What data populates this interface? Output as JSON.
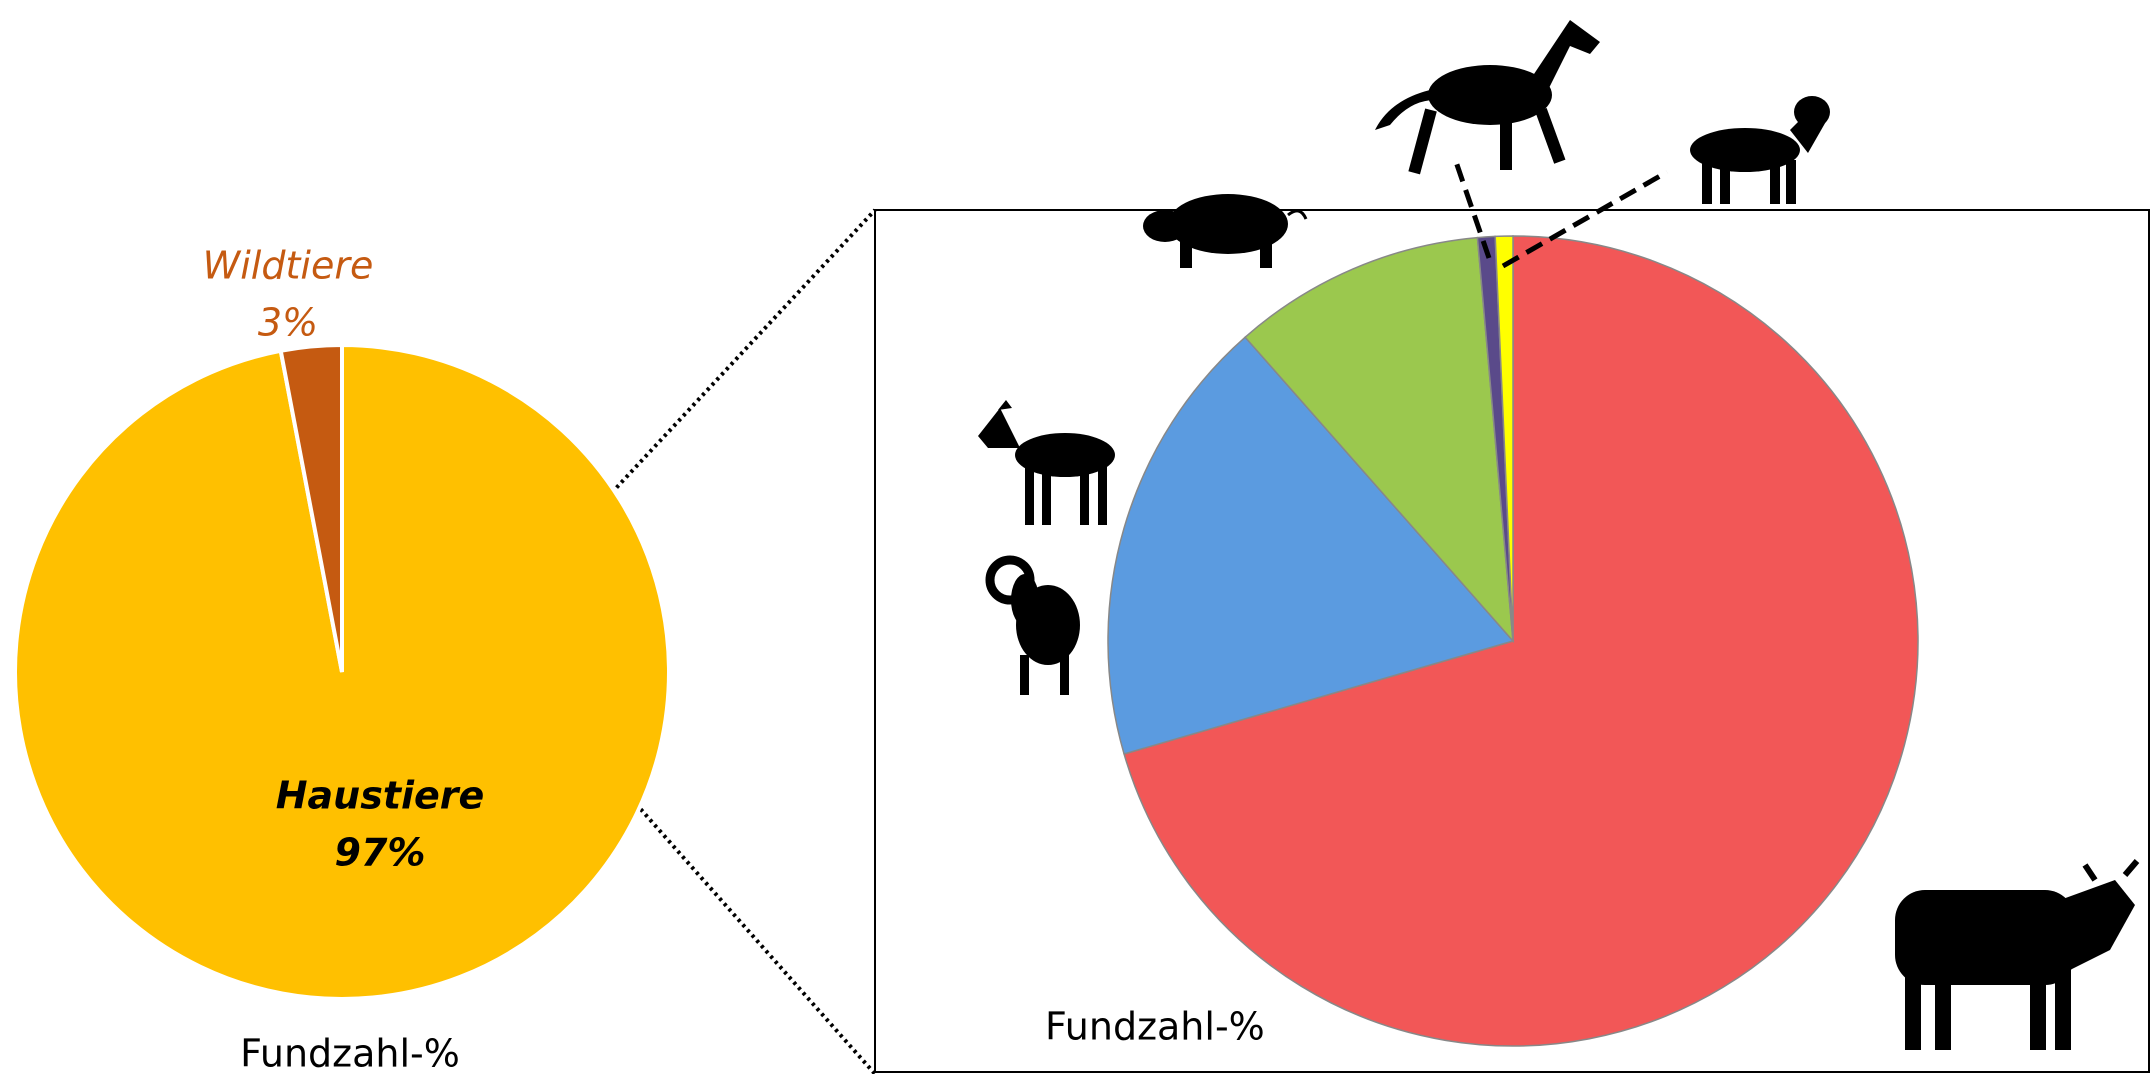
{
  "chart_data": [
    {
      "type": "pie",
      "title": "Fundzahl-%",
      "categories": [
        "Haustiere",
        "Wildtiere"
      ],
      "values": [
        97,
        3
      ],
      "value_labels": [
        "97%",
        "3%"
      ],
      "colors": [
        "#ffc000",
        "#c55a11"
      ]
    },
    {
      "type": "pie",
      "title": "Fundzahl-%",
      "categories": [
        null,
        null,
        null,
        null,
        null
      ],
      "values": [
        70.5,
        18,
        10.1,
        0.7,
        0.7
      ],
      "colors": [
        "#f25757",
        "#5b9be0",
        "#9bc84e",
        "#5a4a8a",
        "#ffff00"
      ]
    }
  ]
}
